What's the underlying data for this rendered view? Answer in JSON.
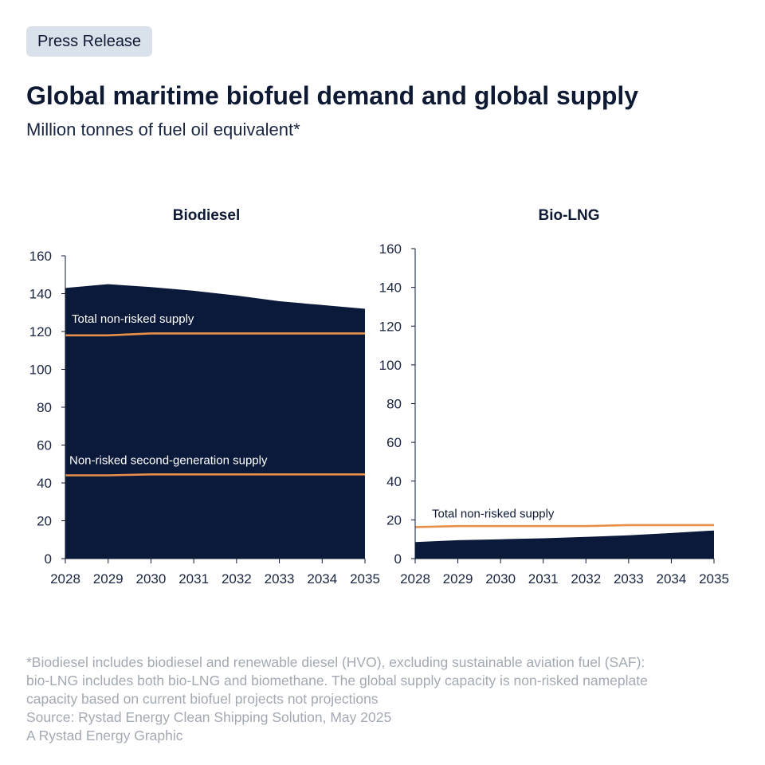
{
  "badge": "Press Release",
  "title": "Global maritime biofuel demand and global supply",
  "subtitle": "Million tonnes of fuel oil equivalent*",
  "colors": {
    "area": "#0b1a3a",
    "supply_line": "#e8904a",
    "badge_bg": "#d9e1ea",
    "footnote": "#a3a9b3"
  },
  "chart_data": [
    {
      "type": "area",
      "title": "Biodiesel",
      "x": [
        "2028",
        "2029",
        "2030",
        "2031",
        "2032",
        "2033",
        "2034",
        "2035"
      ],
      "ylim": [
        0,
        160
      ],
      "yticks": [
        "0",
        "20",
        "40",
        "60",
        "80",
        "100",
        "120",
        "140",
        "160"
      ],
      "grid": false,
      "series": [
        {
          "kind": "area",
          "values": [
            143,
            145,
            143.5,
            141.5,
            139,
            136,
            134,
            132
          ]
        },
        {
          "kind": "line",
          "name": "Total non-risked supply",
          "values": [
            118,
            118,
            119,
            119,
            119,
            119,
            119,
            119
          ]
        },
        {
          "kind": "line",
          "name": "Non-risked second-generation supply",
          "values": [
            44,
            44,
            44.5,
            44.5,
            44.5,
            44.5,
            44.5,
            44.5
          ]
        }
      ]
    },
    {
      "type": "area",
      "title": "Bio-LNG",
      "x": [
        "2028",
        "2029",
        "2030",
        "2031",
        "2032",
        "2033",
        "2034",
        "2035"
      ],
      "ylim": [
        0,
        160
      ],
      "yticks": [
        "0",
        "20",
        "40",
        "60",
        "80",
        "100",
        "120",
        "140",
        "160"
      ],
      "grid": false,
      "series": [
        {
          "kind": "area",
          "values": [
            8.5,
            9.5,
            10,
            10.5,
            11.2,
            12,
            13.2,
            14.5
          ]
        },
        {
          "kind": "line",
          "name": "Total non-risked supply",
          "values": [
            16.3,
            16.8,
            16.8,
            16.8,
            16.8,
            17.3,
            17.3,
            17.3
          ]
        }
      ]
    }
  ],
  "footnote": {
    "lines": [
      "*Biodiesel includes biodiesel and renewable diesel (HVO), excluding sustainable aviation fuel (SAF):",
      "bio-LNG includes both bio-LNG and biomethane. The global supply capacity is non-risked nameplate",
      "capacity based on current biofuel projects not projections",
      "Source: Rystad Energy Clean Shipping Solution, May 2025",
      "A Rystad Energy Graphic"
    ]
  }
}
